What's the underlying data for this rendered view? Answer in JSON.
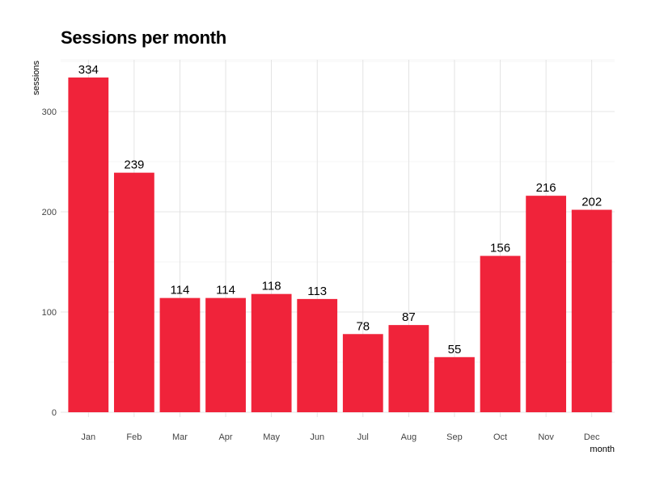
{
  "chart_data": {
    "type": "bar",
    "title": "Sessions per month",
    "xlabel": "month",
    "ylabel": "sessions",
    "categories": [
      "Jan",
      "Feb",
      "Mar",
      "Apr",
      "May",
      "Jun",
      "Jul",
      "Aug",
      "Sep",
      "Oct",
      "Nov",
      "Dec"
    ],
    "values": [
      334,
      239,
      114,
      114,
      118,
      113,
      78,
      87,
      55,
      156,
      216,
      202
    ],
    "ylim": [
      0,
      350
    ],
    "yticks": [
      0,
      100,
      200,
      300
    ],
    "grid": true,
    "legend": "none",
    "bar_color": "#f0233a",
    "grid_color": "#dddddd"
  }
}
